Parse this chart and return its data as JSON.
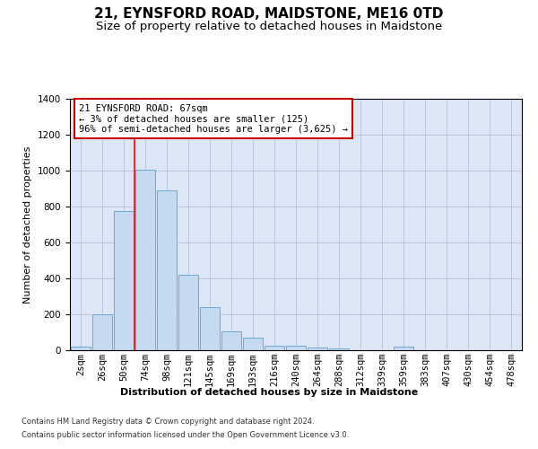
{
  "title": "21, EYNSFORD ROAD, MAIDSTONE, ME16 0TD",
  "subtitle": "Size of property relative to detached houses in Maidstone",
  "xlabel": "Distribution of detached houses by size in Maidstone",
  "ylabel": "Number of detached properties",
  "bar_labels": [
    "2sqm",
    "26sqm",
    "50sqm",
    "74sqm",
    "98sqm",
    "121sqm",
    "145sqm",
    "169sqm",
    "193sqm",
    "216sqm",
    "240sqm",
    "264sqm",
    "288sqm",
    "312sqm",
    "339sqm",
    "359sqm",
    "383sqm",
    "407sqm",
    "430sqm",
    "454sqm",
    "478sqm"
  ],
  "bar_values": [
    20,
    200,
    775,
    1005,
    890,
    420,
    240,
    105,
    70,
    25,
    25,
    15,
    10,
    0,
    0,
    20,
    0,
    0,
    0,
    0,
    0
  ],
  "bar_color": "#c5d9f0",
  "bar_edge_color": "#6aaad4",
  "red_line_x": 2.5,
  "annotation_text": "21 EYNSFORD ROAD: 67sqm\n← 3% of detached houses are smaller (125)\n96% of semi-detached houses are larger (3,625) →",
  "annotation_box_color": "#ffffff",
  "annotation_box_edge_color": "#cc0000",
  "ylim": [
    0,
    1400
  ],
  "yticks": [
    0,
    200,
    400,
    600,
    800,
    1000,
    1200,
    1400
  ],
  "footer_line1": "Contains HM Land Registry data © Crown copyright and database right 2024.",
  "footer_line2": "Contains public sector information licensed under the Open Government Licence v3.0.",
  "background_color": "#ffffff",
  "plot_bg_color": "#dce6f5",
  "grid_color": "#b8c8e0",
  "title_fontsize": 11,
  "subtitle_fontsize": 9.5,
  "axis_label_fontsize": 8,
  "tick_fontsize": 7.5,
  "annotation_fontsize": 7.5,
  "footer_fontsize": 6
}
